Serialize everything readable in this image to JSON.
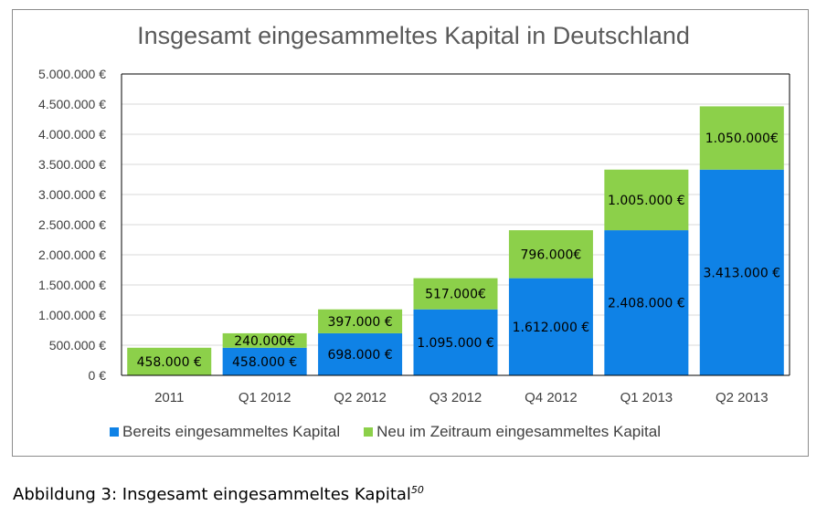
{
  "caption": {
    "text": "Abbildung 3: Insgesamt eingesammeltes Kapital",
    "footnote": "50"
  },
  "colors": {
    "series1": "#0f82e6",
    "series2": "#8cd04a",
    "grid": "#d9d9d9",
    "axis": "#000000"
  },
  "chart_data": {
    "type": "bar",
    "stacked": true,
    "title": "Insgesamt eingesammeltes Kapital in Deutschland",
    "categories": [
      "2011",
      "Q1 2012",
      "Q2 2012",
      "Q3 2012",
      "Q4 2012",
      "Q1 2013",
      "Q2 2013"
    ],
    "ylim": [
      0,
      5000000
    ],
    "yticks": [
      0,
      500000,
      1000000,
      1500000,
      2000000,
      2500000,
      3000000,
      3500000,
      4000000,
      4500000,
      5000000
    ],
    "ytick_labels": [
      "0 €",
      "500.000 €",
      "1.000.000 €",
      "1.500.000 €",
      "2.000.000 €",
      "2.500.000 €",
      "3.000.000 €",
      "3.500.000 €",
      "4.000.000 €",
      "4.500.000 €",
      "5.000.000 €"
    ],
    "grid": true,
    "legend_position": "bottom",
    "series": [
      {
        "name": "Bereits eingesammeltes Kapital",
        "values": [
          0,
          458000,
          698000,
          1095000,
          1612000,
          2408000,
          3413000
        ],
        "labels": [
          "",
          "458.000 €",
          "698.000 €",
          "1.095.000 €",
          "1.612.000 €",
          "2.408.000 €",
          "3.413.000 €"
        ]
      },
      {
        "name": "Neu im Zeitraum eingesammeltes Kapital",
        "values": [
          458000,
          240000,
          397000,
          517000,
          796000,
          1005000,
          1050000
        ],
        "labels": [
          "458.000 €",
          "240.000€",
          "397.000 €",
          "517.000€",
          "796.000€",
          "1.005.000 €",
          "1.050.000€"
        ]
      }
    ]
  }
}
